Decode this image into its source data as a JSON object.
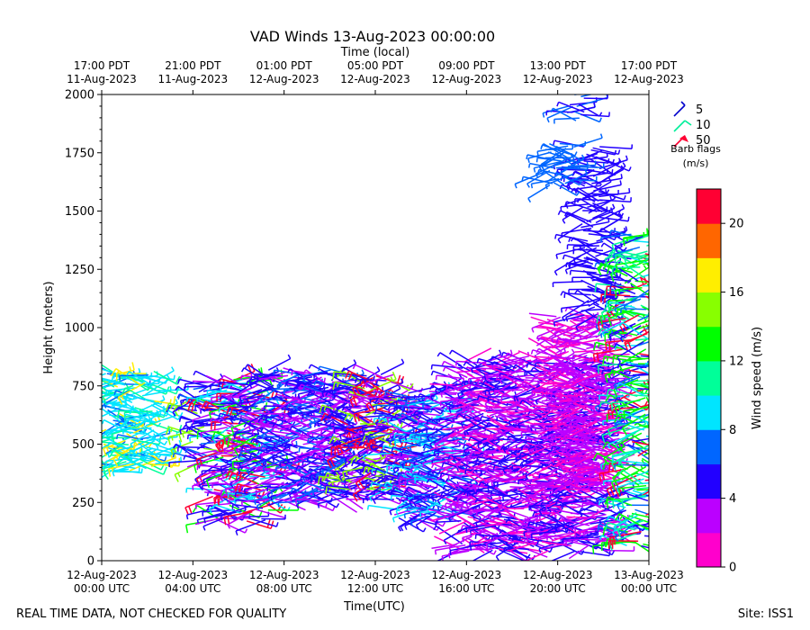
{
  "chart_data": {
    "type": "barbs",
    "title": "VAD Winds 13-Aug-2023 00:00:00",
    "top_axis_label": "Time (local)",
    "xlabel": "Time(UTC)",
    "ylabel": "Height (meters)",
    "xlim_hours": [
      0,
      24
    ],
    "ylim": [
      0,
      2000
    ],
    "y_ticks": [
      0,
      250,
      500,
      750,
      1000,
      1250,
      1500,
      1750,
      2000
    ],
    "x_ticks": [
      {
        "hours": 0,
        "line1": "12-Aug-2023",
        "line2": "00:00 UTC"
      },
      {
        "hours": 4,
        "line1": "12-Aug-2023",
        "line2": "04:00 UTC"
      },
      {
        "hours": 8,
        "line1": "12-Aug-2023",
        "line2": "08:00 UTC"
      },
      {
        "hours": 12,
        "line1": "12-Aug-2023",
        "line2": "12:00 UTC"
      },
      {
        "hours": 16,
        "line1": "12-Aug-2023",
        "line2": "16:00 UTC"
      },
      {
        "hours": 20,
        "line1": "12-Aug-2023",
        "line2": "20:00 UTC"
      },
      {
        "hours": 24,
        "line1": "13-Aug-2023",
        "line2": "00:00 UTC"
      }
    ],
    "top_ticks": [
      {
        "hours": 0,
        "line1": "17:00 PDT",
        "line2": "11-Aug-2023"
      },
      {
        "hours": 4,
        "line1": "21:00 PDT",
        "line2": "11-Aug-2023"
      },
      {
        "hours": 8,
        "line1": "01:00 PDT",
        "line2": "12-Aug-2023"
      },
      {
        "hours": 12,
        "line1": "05:00 PDT",
        "line2": "12-Aug-2023"
      },
      {
        "hours": 16,
        "line1": "09:00 PDT",
        "line2": "12-Aug-2023"
      },
      {
        "hours": 20,
        "line1": "13:00 PDT",
        "line2": "12-Aug-2023"
      },
      {
        "hours": 24,
        "line1": "17:00 PDT",
        "line2": "12-Aug-2023"
      }
    ],
    "legend": {
      "entries": [
        {
          "label": "5",
          "color": "#0000cc"
        },
        {
          "label": "10",
          "color": "#00ee99"
        },
        {
          "label": "50",
          "color": "#ff0033"
        }
      ],
      "title_line1": "Barb flags",
      "title_line2": "(m/s)"
    },
    "colorbar": {
      "label": "Wind speed (m/s)",
      "range": [
        0,
        22
      ],
      "tick_values": [
        0,
        4,
        8,
        12,
        16,
        20
      ],
      "colors": [
        "#ff00cc",
        "#bb00ff",
        "#2200ff",
        "#0066ff",
        "#00e5ff",
        "#00ff99",
        "#00ff00",
        "#88ff00",
        "#ffee00",
        "#ff6600",
        "#ff0033"
      ]
    },
    "regions": [
      {
        "t0": 0.0,
        "t1": 2.4,
        "h0": 380,
        "h1": 820,
        "speeds": [
          8,
          9,
          7,
          10,
          16,
          9,
          8
        ]
      },
      {
        "t0": 4.0,
        "t1": 4.8,
        "h0": 420,
        "h1": 760,
        "speeds": [
          5,
          6,
          7,
          4,
          14
        ]
      },
      {
        "t0": 4.8,
        "t1": 7.3,
        "h0": 170,
        "h1": 780,
        "speeds": [
          3,
          4,
          5,
          9,
          12,
          2,
          20
        ]
      },
      {
        "t0": 7.3,
        "t1": 11.0,
        "h0": 250,
        "h1": 820,
        "speeds": [
          3,
          4,
          5,
          2,
          6
        ]
      },
      {
        "t0": 10.8,
        "t1": 12.8,
        "h0": 280,
        "h1": 800,
        "speeds": [
          4,
          5,
          3,
          20,
          14
        ]
      },
      {
        "t0": 12.8,
        "t1": 15.5,
        "h0": 180,
        "h1": 720,
        "speeds": [
          4,
          5,
          3,
          6,
          9
        ]
      },
      {
        "t0": 15.5,
        "t1": 22.3,
        "h0": 40,
        "h1": 860,
        "speeds": [
          1,
          2,
          3,
          4,
          5
        ]
      },
      {
        "t0": 19.9,
        "t1": 22.0,
        "h0": 300,
        "h1": 1050,
        "speeds": [
          1,
          2,
          3
        ]
      },
      {
        "t0": 21.0,
        "t1": 22.0,
        "h0": 1050,
        "h1": 1780,
        "speeds": [
          4,
          5
        ]
      },
      {
        "t0": 19.4,
        "t1": 20.7,
        "h0": 1610,
        "h1": 1790,
        "speeds": [
          6,
          7
        ]
      },
      {
        "t0": 20.4,
        "t1": 21.2,
        "h0": 1880,
        "h1": 2000,
        "speeds": [
          5,
          6
        ]
      },
      {
        "t0": 22.8,
        "t1": 24.0,
        "h0": 60,
        "h1": 1400,
        "speeds": [
          8,
          10,
          12,
          13,
          5,
          20,
          7
        ]
      }
    ]
  },
  "footer": {
    "disclaimer": "REAL TIME DATA, NOT CHECKED FOR QUALITY",
    "site": "Site: ISS1"
  }
}
